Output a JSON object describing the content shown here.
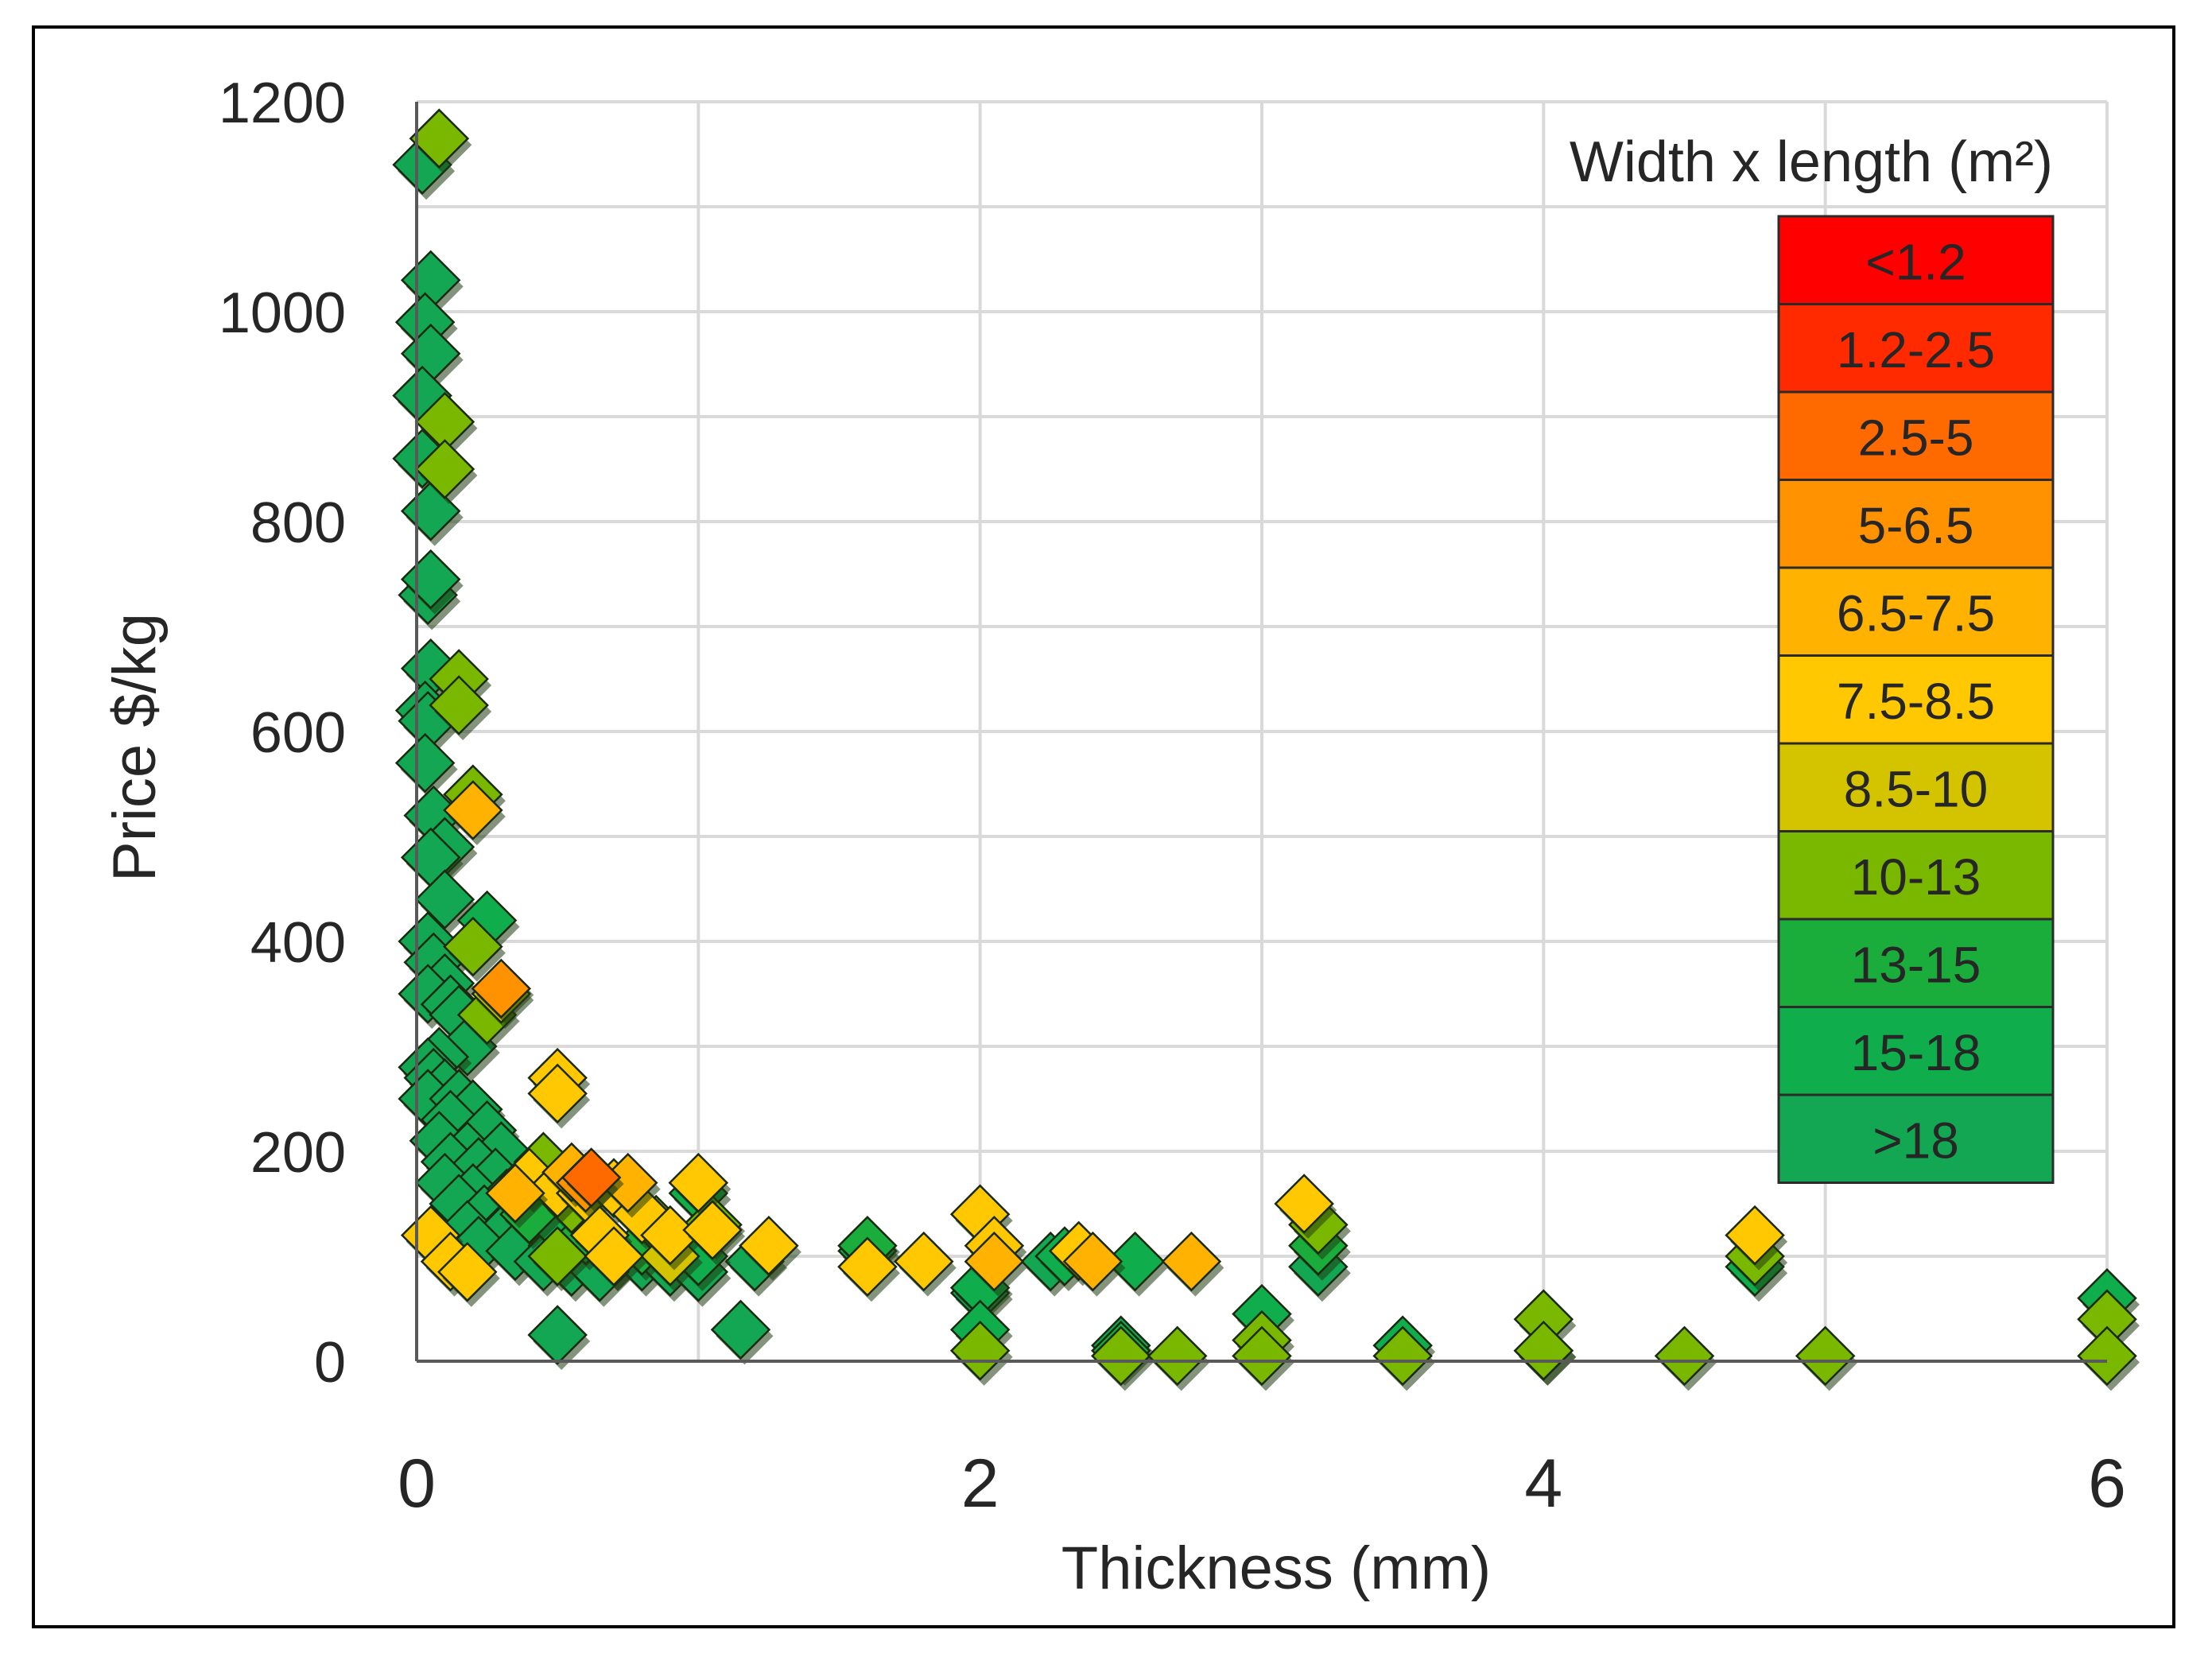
{
  "chart_data": {
    "type": "scatter",
    "title": "",
    "xlabel": "Thickness (mm)",
    "ylabel": "Price $/kg",
    "xlim": [
      0,
      6
    ],
    "ylim": [
      0,
      1200
    ],
    "x_ticks": [
      "0",
      "2",
      "4",
      "6"
    ],
    "y_ticks": [
      "0",
      "200",
      "400",
      "600",
      "800",
      "1000",
      "1200"
    ],
    "grid": true,
    "marker": "diamond",
    "legend": {
      "title": "Width x length (m²)",
      "placement": "top-right",
      "items": [
        {
          "label": "<1.2",
          "color": "#ff0000"
        },
        {
          "label": "1.2-2.5",
          "color": "#ff2a00"
        },
        {
          "label": "2.5-5",
          "color": "#ff6a00"
        },
        {
          "label": "5-6.5",
          "color": "#ff9200"
        },
        {
          "label": "6.5-7.5",
          "color": "#ffb200"
        },
        {
          "label": "7.5-8.5",
          "color": "#ffc800"
        },
        {
          "label": "8.5-10",
          "color": "#d4c400"
        },
        {
          "label": "10-13",
          "color": "#7ab800"
        },
        {
          "label": "13-15",
          "color": "#1aad3c"
        },
        {
          "label": "15-18",
          "color": "#0fad4c"
        },
        {
          "label": ">18",
          "color": "#13a653"
        }
      ]
    },
    "series": [
      {
        "name": ">18",
        "color": "#13a653",
        "points": [
          [
            0.02,
            1140
          ],
          [
            0.05,
            1030
          ],
          [
            0.03,
            990
          ],
          [
            0.05,
            960
          ],
          [
            0.02,
            920
          ],
          [
            0.02,
            860
          ],
          [
            0.05,
            810
          ],
          [
            0.04,
            730
          ],
          [
            0.05,
            745
          ],
          [
            0.05,
            660
          ],
          [
            0.03,
            620
          ],
          [
            0.04,
            610
          ],
          [
            0.03,
            570
          ],
          [
            0.06,
            520
          ],
          [
            0.1,
            490
          ],
          [
            0.05,
            480
          ],
          [
            0.1,
            440
          ],
          [
            0.04,
            400
          ],
          [
            0.06,
            380
          ],
          [
            0.1,
            360
          ],
          [
            0.04,
            350
          ],
          [
            0.12,
            340
          ],
          [
            0.15,
            330
          ],
          [
            0.18,
            300
          ],
          [
            0.08,
            290
          ],
          [
            0.04,
            280
          ],
          [
            0.06,
            270
          ],
          [
            0.1,
            260
          ],
          [
            0.04,
            250
          ],
          [
            0.15,
            250
          ],
          [
            0.2,
            240
          ],
          [
            0.12,
            230
          ],
          [
            0.25,
            220
          ],
          [
            0.08,
            210
          ],
          [
            0.18,
            200
          ],
          [
            0.3,
            200
          ],
          [
            0.12,
            190
          ],
          [
            0.22,
            185
          ],
          [
            0.1,
            170
          ],
          [
            0.28,
            175
          ],
          [
            0.2,
            160
          ],
          [
            0.32,
            155
          ],
          [
            0.15,
            150
          ],
          [
            0.24,
            140
          ],
          [
            0.35,
            135
          ],
          [
            0.18,
            125
          ],
          [
            0.3,
            120
          ],
          [
            0.4,
            115
          ],
          [
            0.22,
            110
          ],
          [
            0.35,
            105
          ],
          [
            0.5,
            110
          ],
          [
            0.6,
            105
          ],
          [
            0.7,
            100
          ],
          [
            0.8,
            95
          ],
          [
            0.9,
            90
          ],
          [
            1.0,
            85
          ],
          [
            0.55,
            90
          ],
          [
            0.65,
            85
          ],
          [
            0.45,
            95
          ],
          [
            1.2,
            95
          ],
          [
            1.15,
            30
          ],
          [
            0.5,
            25
          ],
          [
            2.25,
            95
          ],
          [
            2.5,
            15
          ],
          [
            2.0,
            65
          ],
          [
            3.2,
            90
          ]
        ]
      },
      {
        "name": "15-18",
        "color": "#0fad4c",
        "points": [
          [
            0.25,
            420
          ],
          [
            0.5,
            130
          ],
          [
            1.0,
            160
          ],
          [
            1.0,
            100
          ],
          [
            1.6,
            105
          ],
          [
            2.0,
            70
          ],
          [
            2.0,
            30
          ],
          [
            2.3,
            100
          ],
          [
            2.55,
            95
          ],
          [
            3.0,
            45
          ],
          [
            3.5,
            15
          ],
          [
            4.0,
            10
          ],
          [
            4.75,
            90
          ],
          [
            6.0,
            60
          ]
        ]
      },
      {
        "name": "13-15",
        "color": "#1aad3c",
        "points": [
          [
            0.4,
            140
          ],
          [
            0.6,
            120
          ],
          [
            0.8,
            110
          ],
          [
            1.6,
            110
          ],
          [
            2.5,
            10
          ],
          [
            3.2,
            110
          ]
        ]
      },
      {
        "name": "10-13",
        "color": "#7ab800",
        "points": [
          [
            0.45,
            190
          ],
          [
            0.55,
            150
          ],
          [
            0.85,
            130
          ],
          [
            1.05,
            130
          ],
          [
            2.0,
            10
          ],
          [
            2.5,
            5
          ],
          [
            2.7,
            5
          ],
          [
            3.0,
            20
          ],
          [
            3.0,
            5
          ],
          [
            3.2,
            130
          ],
          [
            3.5,
            5
          ],
          [
            4.0,
            40
          ],
          [
            4.0,
            10
          ],
          [
            4.5,
            5
          ],
          [
            5.0,
            5
          ],
          [
            6.0,
            40
          ],
          [
            6.0,
            5
          ],
          [
            0.08,
            1165
          ],
          [
            0.1,
            895
          ],
          [
            0.1,
            850
          ],
          [
            0.15,
            650
          ],
          [
            0.15,
            625
          ],
          [
            0.2,
            540
          ],
          [
            0.2,
            395
          ],
          [
            0.25,
            330
          ],
          [
            0.5,
            100
          ],
          [
            4.75,
            100
          ]
        ]
      },
      {
        "name": "8.5-10",
        "color": "#d4c400",
        "points": [
          [
            0.3,
            350
          ],
          [
            0.9,
            100
          ]
        ]
      },
      {
        "name": "7.5-8.5",
        "color": "#ffc800",
        "points": [
          [
            0.5,
            270
          ],
          [
            0.5,
            255
          ],
          [
            0.05,
            120
          ],
          [
            0.12,
            95
          ],
          [
            0.18,
            85
          ],
          [
            0.4,
            175
          ],
          [
            0.5,
            165
          ],
          [
            0.6,
            160
          ],
          [
            0.7,
            165
          ],
          [
            0.8,
            140
          ],
          [
            0.9,
            120
          ],
          [
            1.0,
            170
          ],
          [
            1.05,
            125
          ],
          [
            1.25,
            110
          ],
          [
            1.6,
            90
          ],
          [
            1.8,
            95
          ],
          [
            2.0,
            140
          ],
          [
            2.05,
            110
          ],
          [
            2.35,
            105
          ],
          [
            3.15,
            150
          ],
          [
            4.75,
            120
          ],
          [
            0.65,
            120
          ],
          [
            0.7,
            100
          ]
        ]
      },
      {
        "name": "6.5-7.5",
        "color": "#ffb200",
        "points": [
          [
            0.2,
            525
          ],
          [
            0.35,
            160
          ],
          [
            0.55,
            180
          ],
          [
            0.75,
            170
          ],
          [
            2.05,
            95
          ],
          [
            2.4,
            95
          ],
          [
            2.75,
            95
          ]
        ]
      },
      {
        "name": "5-6.5",
        "color": "#ff9200",
        "points": [
          [
            0.3,
            355
          ],
          [
            0.6,
            170
          ]
        ]
      },
      {
        "name": "2.5-5",
        "color": "#ff6a00",
        "points": [
          [
            0.62,
            175
          ]
        ]
      }
    ]
  }
}
